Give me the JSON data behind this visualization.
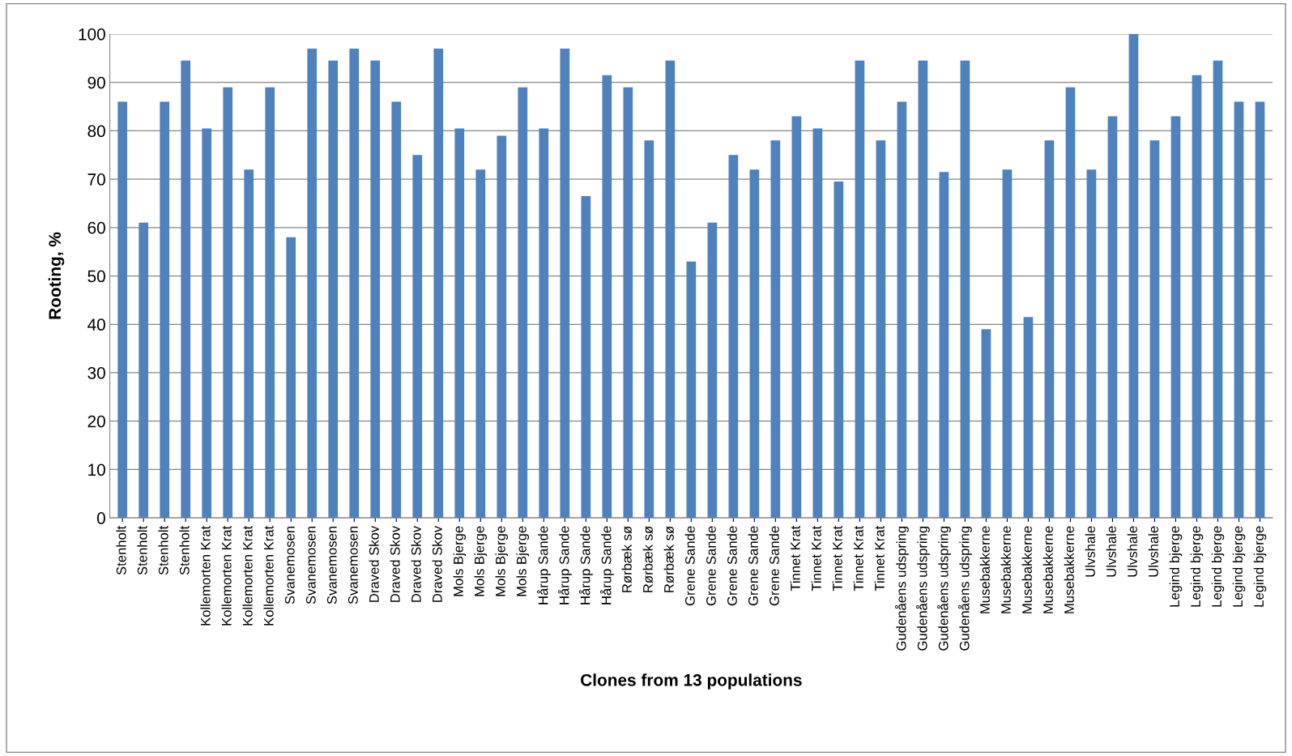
{
  "chart_data": {
    "type": "bar",
    "xlabel": "Clones from 13 populations",
    "ylabel": "Rooting, %",
    "categories": [
      "Stenholt",
      "Stenholt",
      "Stenholt",
      "Stenholt",
      "Kollemorten Krat",
      "Kollemorten Krat",
      "Kollemorten Krat",
      "Kollemorten Krat",
      "Svanemosen",
      "Svanemosen",
      "Svanemosen",
      "Svanemosen",
      "Draved Skov",
      "Draved Skov",
      "Draved Skov",
      "Draved Skov",
      "Mols Bjerge",
      "Mols Bjerge",
      "Mols Bjerge",
      "Mols Bjerge",
      "Hårup Sande",
      "Hårup Sande",
      "Hårup Sande",
      "Hårup Sande",
      "Rørbæk sø",
      "Rørbæk sø",
      "Rørbæk sø",
      "Grene Sande",
      "Grene Sande",
      "Grene Sande",
      "Grene Sande",
      "Grene Sande",
      "Tinnet Krat",
      "Tinnet Krat",
      "Tinnet Krat",
      "Tinnet Krat",
      "Tinnet Krat",
      "Gudenåens udspring",
      "Gudenåens udspring",
      "Gudenåens udspring",
      "Gudenåens udspring",
      "Musebakkerne",
      "Musebakkerne",
      "Musebakkerne",
      "Musebakkerne",
      "Musebakkerne",
      "Ulvshale",
      "Ulvshale",
      "Ulvshale",
      "Ulvshale",
      "Legind bjerge",
      "Legind bjerge",
      "Legind bjerge",
      "Legind bjerge",
      "Legind bjerge"
    ],
    "values": [
      86,
      61,
      86,
      94.5,
      80.5,
      89,
      72,
      89,
      58,
      97,
      94.5,
      97,
      94.5,
      86,
      75,
      97,
      80.5,
      72,
      79,
      89,
      80.5,
      97,
      66.5,
      91.5,
      89,
      78,
      94.5,
      53,
      61,
      75,
      72,
      78,
      83,
      80.5,
      69.5,
      94.5,
      78,
      86,
      94.5,
      71.5,
      94.5,
      39,
      72,
      41.5,
      78,
      89,
      72,
      83,
      100,
      78,
      83,
      91.5,
      94.5,
      86,
      86
    ],
    "color": "#4f81bd",
    "ylim": [
      0,
      100
    ],
    "yticks": [
      0,
      10,
      20,
      30,
      40,
      50,
      60,
      70,
      80,
      90,
      100
    ],
    "grid": "y"
  }
}
